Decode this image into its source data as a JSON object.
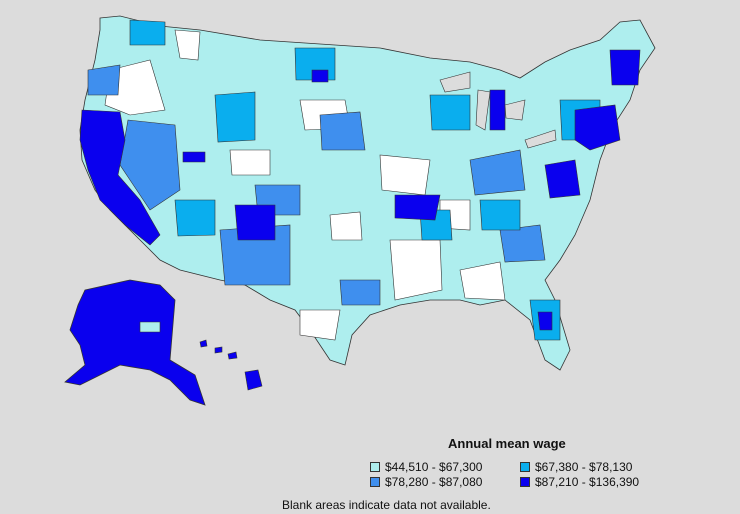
{
  "map": {
    "region": "United States",
    "classes_palette": {
      "c1": "#aeeeee",
      "c2": "#3f8fee",
      "c3": "#0aaeee",
      "c4": "#0a00ee",
      "nodata": "#ffffff",
      "background": "#dcdcdc"
    }
  },
  "legend": {
    "title": "Annual mean wage",
    "items": [
      {
        "label": "$44,510 - $67,300",
        "color": "#aeeeee"
      },
      {
        "label": "$67,380 - $78,130",
        "color": "#0aaeee"
      },
      {
        "label": "$78,280 - $87,080",
        "color": "#3f8fee"
      },
      {
        "label": "$87,210 - $136,390",
        "color": "#0a00ee"
      }
    ]
  },
  "footnote": "Blank areas indicate data not available."
}
